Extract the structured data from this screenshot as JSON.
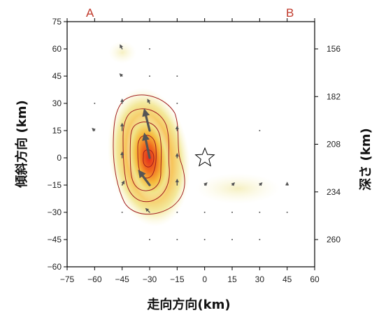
{
  "figure": {
    "corner_labels": {
      "left": "A",
      "right": "B"
    },
    "xlabel": "走向方向(km)",
    "ylabel_left": "傾斜方向 (km)",
    "ylabel_right": "深さ (km)",
    "x_ticks": [
      "-75",
      "-60",
      "-45",
      "-30",
      "-15",
      "0",
      "15",
      "30",
      "45",
      "60"
    ],
    "y_ticks": [
      "75",
      "60",
      "45",
      "30",
      "15",
      "0",
      "-15",
      "-30",
      "-45",
      "-60"
    ],
    "depth_ticks": [
      "156",
      "182",
      "208",
      "234",
      "260"
    ],
    "colors": {
      "frame": "#000000",
      "contour": "#a11d1d",
      "arrow": "#555555",
      "star_stroke": "#000000"
    }
  },
  "chart_data": {
    "type": "heatmap",
    "description_units": "km",
    "xlim": [
      -75,
      60
    ],
    "ylim": [
      -60,
      75
    ],
    "depth_ticks_km": [
      156,
      182,
      208,
      234,
      260
    ],
    "hypocenter": {
      "x": 0,
      "y": 0
    },
    "peak_slip_center": {
      "x": -30,
      "y": 0
    },
    "slip_vectors": [
      {
        "x": -45,
        "y": 60,
        "dx": -1,
        "dy": 2
      },
      {
        "x": -30,
        "y": 60,
        "dx": 0,
        "dy": 0
      },
      {
        "x": -45,
        "y": 45,
        "dx": -1,
        "dy": 1
      },
      {
        "x": -30,
        "y": 45,
        "dx": 0,
        "dy": 0
      },
      {
        "x": -15,
        "y": 45,
        "dx": 0,
        "dy": 0
      },
      {
        "x": -60,
        "y": 30,
        "dx": 0,
        "dy": 0
      },
      {
        "x": -45,
        "y": 30,
        "dx": 0,
        "dy": 2
      },
      {
        "x": -30,
        "y": 30,
        "dx": -1,
        "dy": 2
      },
      {
        "x": -15,
        "y": 30,
        "dx": 0,
        "dy": 0
      },
      {
        "x": -60,
        "y": 15,
        "dx": -1,
        "dy": 1
      },
      {
        "x": -45,
        "y": 15,
        "dx": 0,
        "dy": 4
      },
      {
        "x": -30,
        "y": 15,
        "dx": -3,
        "dy": 12
      },
      {
        "x": -15,
        "y": 15,
        "dx": 0,
        "dy": 2
      },
      {
        "x": -45,
        "y": 0,
        "dx": 0,
        "dy": 3
      },
      {
        "x": -30,
        "y": 0,
        "dx": -3,
        "dy": 14
      },
      {
        "x": -15,
        "y": 0,
        "dx": 0,
        "dy": 2
      },
      {
        "x": -45,
        "y": -15,
        "dx": 1,
        "dy": 2
      },
      {
        "x": -30,
        "y": -15,
        "dx": -6,
        "dy": 8
      },
      {
        "x": -15,
        "y": -15,
        "dx": 0,
        "dy": 3
      },
      {
        "x": 0,
        "y": -15,
        "dx": 1,
        "dy": 1
      },
      {
        "x": 15,
        "y": -15,
        "dx": 1,
        "dy": 1
      },
      {
        "x": 30,
        "y": -15,
        "dx": 1,
        "dy": 1
      },
      {
        "x": 45,
        "y": -15,
        "dx": 0,
        "dy": 1
      },
      {
        "x": -45,
        "y": -30,
        "dx": 0,
        "dy": 0
      },
      {
        "x": -30,
        "y": -30,
        "dx": -2,
        "dy": 2
      },
      {
        "x": -15,
        "y": -30,
        "dx": 0,
        "dy": 0
      },
      {
        "x": 0,
        "y": -30,
        "dx": 0,
        "dy": 0
      },
      {
        "x": 15,
        "y": -30,
        "dx": 0,
        "dy": 0
      },
      {
        "x": 30,
        "y": -30,
        "dx": 0,
        "dy": 0
      },
      {
        "x": 45,
        "y": -30,
        "dx": 0,
        "dy": 0
      },
      {
        "x": -30,
        "y": -45,
        "dx": 0,
        "dy": 0
      },
      {
        "x": -15,
        "y": -45,
        "dx": 0,
        "dy": 0
      },
      {
        "x": 0,
        "y": -45,
        "dx": 0,
        "dy": 0
      },
      {
        "x": 15,
        "y": -45,
        "dx": 0,
        "dy": 0
      },
      {
        "x": 30,
        "y": -45,
        "dx": 0,
        "dy": 0
      },
      {
        "x": 30,
        "y": 15,
        "dx": 0,
        "dy": 0
      }
    ]
  }
}
